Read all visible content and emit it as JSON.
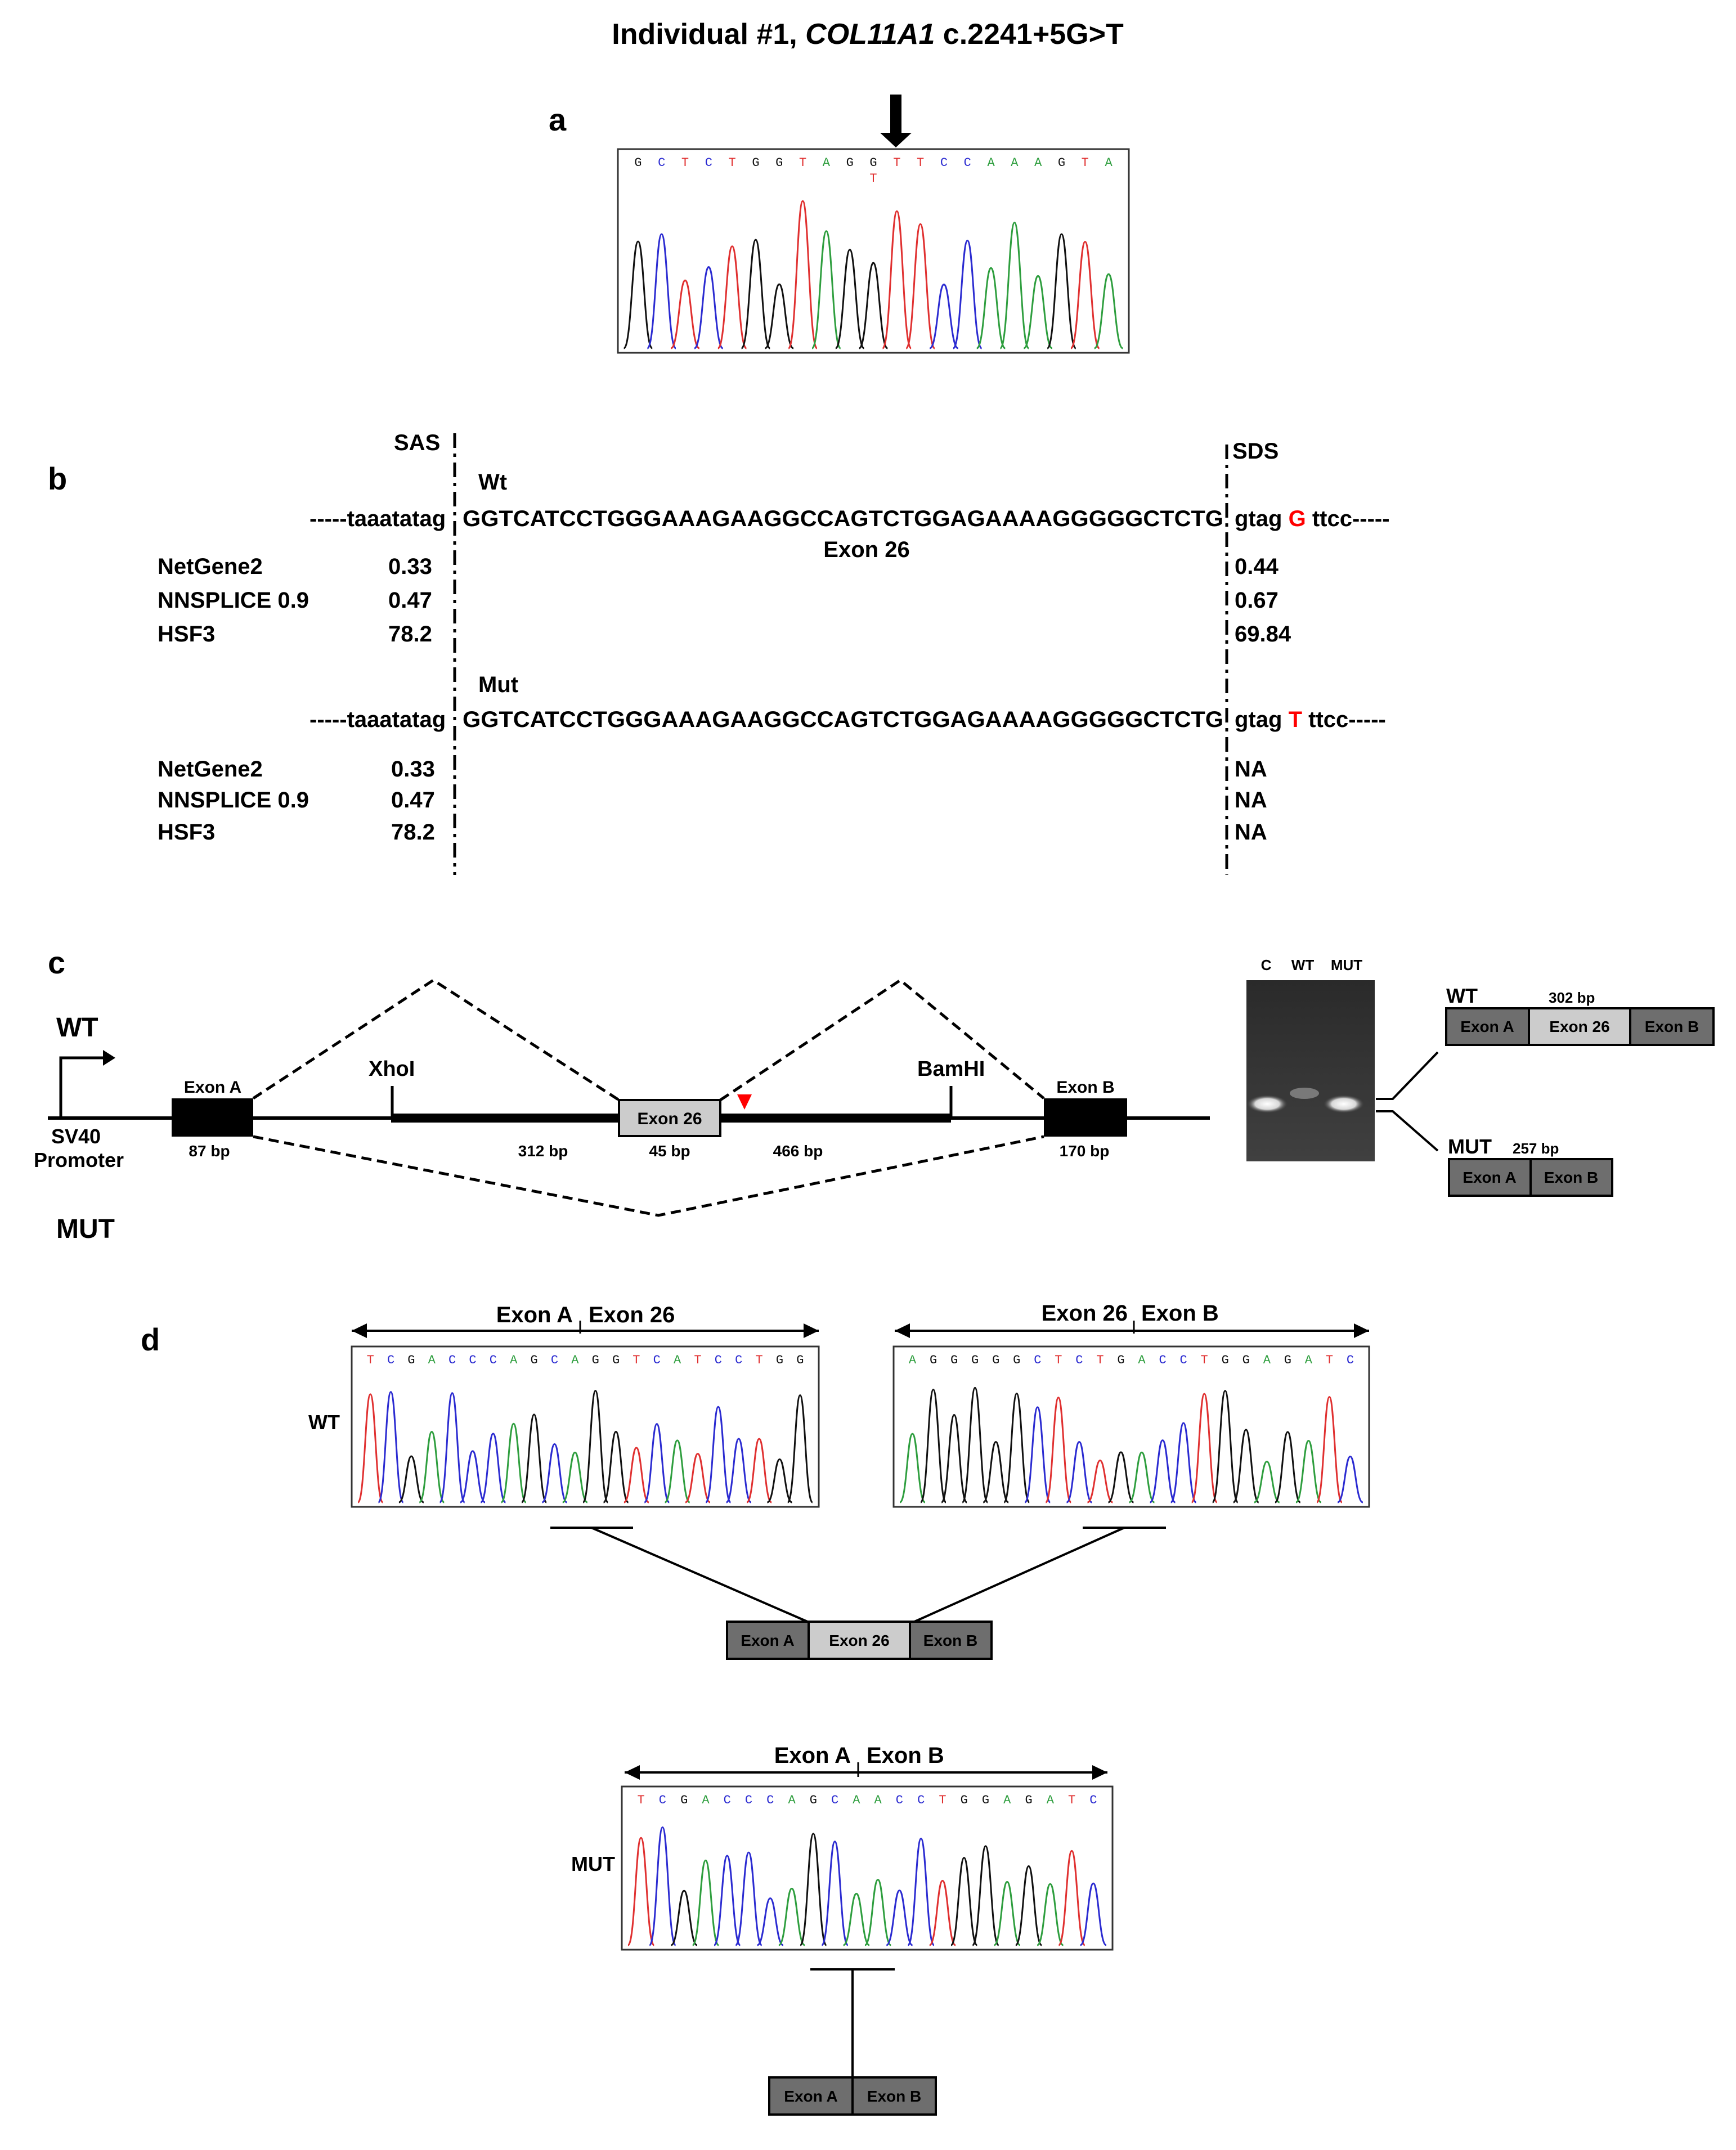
{
  "title": {
    "prefix": "Individual #1, ",
    "gene": "COL11A1",
    "suffix": " c.2241+5G>T"
  },
  "panel_labels": {
    "a": "a",
    "b": "b",
    "c": "c",
    "d": "d"
  },
  "colors": {
    "A": "#2e9e3e",
    "C": "#2b2bd1",
    "G": "#111111",
    "T": "#e03030",
    "highlight": "#ff0000",
    "exon_dark": "#6e6e6e",
    "exon_light": "#cccccc",
    "exon_black": "#000000"
  },
  "panel_a": {
    "sequence": [
      "G",
      "C",
      "T",
      "C",
      "T",
      "G",
      "G",
      "T",
      "A",
      "G",
      "G",
      "T",
      "T",
      "C",
      "C",
      "A",
      "A",
      "A",
      "G",
      "T",
      "A"
    ],
    "variant_base": "T"
  },
  "panel_b": {
    "sas_label": "SAS",
    "sds_label": "SDS",
    "exon_label": "Exon 26",
    "programs": [
      "NetGene2",
      "NNSPLICE 0.9",
      "HSF3"
    ],
    "wt": {
      "label": "Wt",
      "intron_left": "-----taaatatag",
      "exon_seq": "GGTCATCCTGGGAAAGAAGGCCAGTCTGGAGAAAAGGGGGCTCTG",
      "intron_right_pre": "gtag",
      "variant": "G",
      "intron_right_post": "ttcc-----",
      "sas_scores": [
        "0.33",
        "0.47",
        "78.2"
      ],
      "sds_scores": [
        "0.44",
        "0.67",
        "69.84"
      ]
    },
    "mut": {
      "label": "Mut",
      "intron_left": "-----taaatatag",
      "exon_seq": "GGTCATCCTGGGAAAGAAGGCCAGTCTGGAGAAAAGGGGGCTCTG",
      "intron_right_pre": "gtag",
      "variant": "T",
      "intron_right_post": "ttcc-----",
      "sas_scores": [
        "0.33",
        "0.47",
        "78.2"
      ],
      "sds_scores": [
        "NA",
        "NA",
        "NA"
      ]
    }
  },
  "panel_c": {
    "wt_label": "WT",
    "mut_label": "MUT",
    "promoter": [
      "SV40",
      "Promoter"
    ],
    "exon_a": {
      "label": "Exon A",
      "size": "87 bp"
    },
    "exon_26": {
      "label": "Exon 26",
      "size": "45 bp"
    },
    "exon_b": {
      "label": "Exon B",
      "size": "170 bp"
    },
    "xhol": "XhoI",
    "bamhi": "BamHI",
    "seg_left_size": "312 bp",
    "seg_right_size": "466 bp",
    "gel_lanes": [
      "C",
      "WT",
      "MUT"
    ],
    "product_wt": {
      "label": "WT",
      "size": "302 bp",
      "exons": [
        "Exon A",
        "Exon 26",
        "Exon B"
      ]
    },
    "product_mut": {
      "label": "MUT",
      "size": "257 bp",
      "exons": [
        "Exon A",
        "Exon B"
      ]
    }
  },
  "panel_d": {
    "wt_label": "WT",
    "mut_label": "MUT",
    "trace_wt1": {
      "title_left": "Exon A",
      "title_right": "Exon 26",
      "seq": [
        "T",
        "C",
        "G",
        "A",
        "C",
        "C",
        "C",
        "A",
        "G",
        "C",
        "A",
        "G",
        "G",
        "T",
        "C",
        "A",
        "T",
        "C",
        "C",
        "T",
        "G",
        "G"
      ]
    },
    "trace_wt2": {
      "title_left": "Exon 26",
      "title_right": "Exon B",
      "seq": [
        "A",
        "G",
        "G",
        "G",
        "G",
        "G",
        "C",
        "T",
        "C",
        "T",
        "G",
        "A",
        "C",
        "C",
        "T",
        "G",
        "G",
        "A",
        "G",
        "A",
        "T",
        "C"
      ]
    },
    "trace_mut": {
      "title_left": "Exon A",
      "title_right": "Exon B",
      "seq": [
        "T",
        "C",
        "G",
        "A",
        "C",
        "C",
        "C",
        "A",
        "G",
        "C",
        "A",
        "A",
        "C",
        "C",
        "T",
        "G",
        "G",
        "A",
        "G",
        "A",
        "T",
        "C"
      ]
    },
    "product_wt": [
      "Exon A",
      "Exon 26",
      "Exon B"
    ],
    "product_mut": [
      "Exon A",
      "Exon B"
    ]
  }
}
